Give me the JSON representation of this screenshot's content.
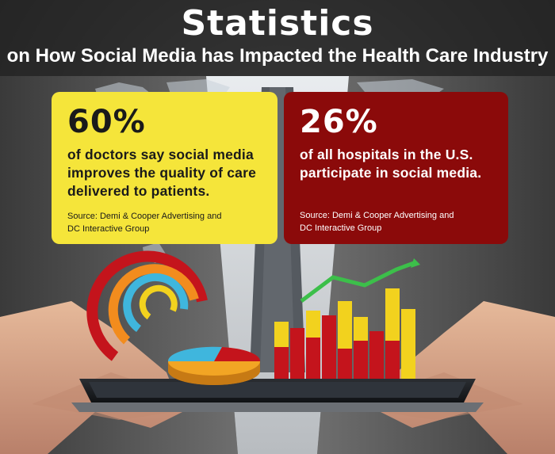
{
  "header": {
    "title": "Statistics",
    "subtitle": "on How Social Media has Impacted the Health Care Industry"
  },
  "cards": [
    {
      "percent": "60%",
      "line1": "of doctors say social media",
      "line2": "improves the quality of care",
      "line3": "delivered to patients.",
      "source1": "Source: Demi & Cooper Advertising and",
      "source2": "DC Interactive Group",
      "color": "#f5e53a"
    },
    {
      "percent": "26%",
      "line1": "of all hospitals in the U.S.",
      "line2": "participate in social media.",
      "source1": "Source: Demi & Cooper Advertising and",
      "source2": "DC Interactive Group",
      "color": "#8b0a0a"
    }
  ],
  "colors": {
    "header_bg": "#1e1e1e",
    "bar_red": "#c4141c",
    "bar_yellow": "#f2d21e",
    "ring_blue": "#3fb6dd",
    "ring_orange": "#f28c1e",
    "arrow_green": "#3cbf4a"
  }
}
